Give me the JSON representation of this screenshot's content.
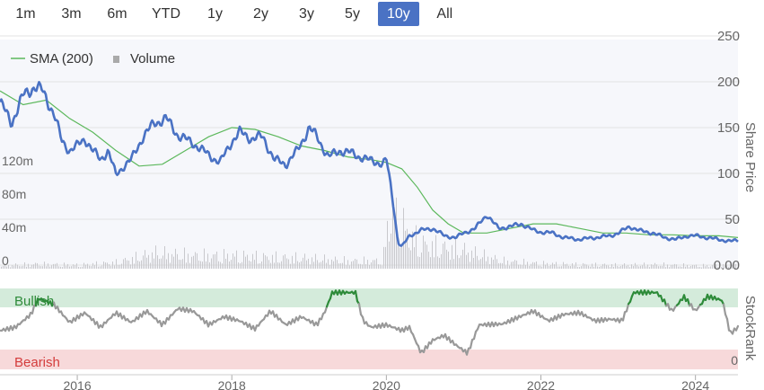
{
  "range_selector": {
    "buttons": [
      {
        "label": "1m",
        "active": false
      },
      {
        "label": "3m",
        "active": false
      },
      {
        "label": "6m",
        "active": false
      },
      {
        "label": "YTD",
        "active": false
      },
      {
        "label": "1y",
        "active": false
      },
      {
        "label": "2y",
        "active": false
      },
      {
        "label": "3y",
        "active": false
      },
      {
        "label": "5y",
        "active": false
      },
      {
        "label": "10y",
        "active": true
      },
      {
        "label": "All",
        "active": false
      }
    ]
  },
  "colors": {
    "price_line": "#4a72c4",
    "sma_line": "#5cb85c",
    "volume_bars": "#c8c8cc",
    "bullish_band": "#d4ebdb",
    "bearish_band": "#f7d9da",
    "stockrank_neutral": "#999999",
    "stockrank_bullish": "#2e8b3a",
    "stockrank_bearish": "#d43c3c",
    "active_button": "#4a72c4"
  },
  "chart_data": {
    "type": "line",
    "legend": {
      "position": "top-left",
      "items": [
        {
          "label": "SMA (200)",
          "symbol": "line"
        },
        {
          "label": "Volume",
          "symbol": "square"
        }
      ]
    },
    "x_axis": {
      "range": [
        2015.0,
        2024.55
      ],
      "ticks": [
        "2016",
        "2018",
        "2020",
        "2022",
        "2024"
      ],
      "tick_values": [
        2016,
        2018,
        2020,
        2022,
        2024
      ]
    },
    "price_axis": {
      "label": "Share Price",
      "range": [
        0,
        250
      ],
      "ticks": [
        "250",
        "200",
        "150",
        "100",
        "50",
        "0.00"
      ],
      "tick_values": [
        250,
        200,
        150,
        100,
        50,
        0
      ]
    },
    "volume_axis": {
      "range": [
        0,
        150000000
      ],
      "ticks": [
        "120m",
        "80m",
        "40m",
        "0"
      ],
      "tick_values": [
        120000000,
        80000000,
        40000000,
        0
      ]
    },
    "stockrank_axis": {
      "label": "StockRank",
      "range": [
        0,
        100
      ],
      "ticks": [
        "0"
      ],
      "tick_values": [
        0
      ],
      "bands": [
        {
          "label": "Bullish",
          "from": 80,
          "to": 100
        },
        {
          "label": "Bearish",
          "from": 0,
          "to": 20
        }
      ]
    },
    "series": [
      {
        "name": "Share Price",
        "x": [
          2015.0,
          2015.15,
          2015.3,
          2015.45,
          2015.55,
          2015.7,
          2015.8,
          2015.9,
          2016.0,
          2016.1,
          2016.2,
          2016.3,
          2016.4,
          2016.5,
          2016.6,
          2016.7,
          2016.85,
          2017.0,
          2017.15,
          2017.3,
          2017.45,
          2017.55,
          2017.7,
          2017.85,
          2018.0,
          2018.1,
          2018.25,
          2018.4,
          2018.55,
          2018.7,
          2018.85,
          2019.0,
          2019.1,
          2019.25,
          2019.4,
          2019.55,
          2019.75,
          2019.9,
          2019.95,
          2020.0,
          2020.05,
          2020.1,
          2020.15,
          2020.2,
          2020.3,
          2020.45,
          2020.6,
          2020.75,
          2020.9,
          2021.0,
          2021.15,
          2021.3,
          2021.45,
          2021.6,
          2021.75,
          2021.9,
          2022.0,
          2022.15,
          2022.3,
          2022.5,
          2022.7,
          2022.9,
          2023.0,
          2023.15,
          2023.3,
          2023.45,
          2023.6,
          2023.75,
          2023.9,
          2024.0,
          2024.15,
          2024.3,
          2024.45,
          2024.55
        ],
        "values": [
          178,
          155,
          185,
          195,
          190,
          165,
          135,
          125,
          130,
          138,
          125,
          115,
          125,
          98,
          108,
          115,
          140,
          155,
          160,
          142,
          135,
          130,
          120,
          112,
          135,
          145,
          138,
          140,
          115,
          110,
          125,
          150,
          140,
          118,
          125,
          122,
          115,
          112,
          110,
          115,
          90,
          60,
          25,
          20,
          32,
          38,
          40,
          32,
          30,
          35,
          40,
          55,
          40,
          42,
          45,
          38,
          36,
          35,
          30,
          28,
          30,
          32,
          35,
          42,
          37,
          35,
          30,
          28,
          32,
          32,
          30,
          28,
          26,
          27
        ]
      },
      {
        "name": "SMA (200)",
        "x": [
          2015.0,
          2015.3,
          2015.6,
          2015.9,
          2016.2,
          2016.5,
          2016.8,
          2017.1,
          2017.4,
          2017.7,
          2018.0,
          2018.3,
          2018.6,
          2018.9,
          2019.2,
          2019.5,
          2019.8,
          2020.0,
          2020.2,
          2020.4,
          2020.6,
          2020.8,
          2021.0,
          2021.3,
          2021.6,
          2021.9,
          2022.2,
          2022.5,
          2022.8,
          2023.1,
          2023.4,
          2023.7,
          2024.0,
          2024.3,
          2024.55
        ],
        "values": [
          190,
          175,
          180,
          160,
          145,
          125,
          108,
          110,
          125,
          140,
          150,
          148,
          140,
          130,
          125,
          118,
          115,
          112,
          105,
          85,
          60,
          45,
          35,
          35,
          40,
          45,
          45,
          40,
          35,
          35,
          33,
          33,
          32,
          32,
          30
        ]
      },
      {
        "name": "StockRank",
        "x": [
          2015.0,
          2015.2,
          2015.4,
          2015.5,
          2015.7,
          2015.9,
          2016.1,
          2016.3,
          2016.5,
          2016.7,
          2016.9,
          2017.1,
          2017.3,
          2017.5,
          2017.7,
          2017.9,
          2018.1,
          2018.3,
          2018.5,
          2018.7,
          2018.9,
          2019.1,
          2019.2,
          2019.3,
          2019.6,
          2019.7,
          2019.8,
          2020.0,
          2020.2,
          2020.3,
          2020.45,
          2020.6,
          2020.75,
          2020.9,
          2021.05,
          2021.2,
          2021.5,
          2021.7,
          2021.9,
          2022.1,
          2022.3,
          2022.5,
          2022.7,
          2022.9,
          2023.05,
          2023.2,
          2023.5,
          2023.7,
          2023.85,
          2024.0,
          2024.15,
          2024.25,
          2024.35,
          2024.45,
          2024.55
        ],
        "values": [
          48,
          52,
          68,
          88,
          80,
          58,
          70,
          52,
          70,
          58,
          72,
          55,
          75,
          72,
          55,
          65,
          60,
          50,
          72,
          55,
          65,
          55,
          70,
          95,
          95,
          60,
          52,
          55,
          48,
          52,
          20,
          36,
          42,
          30,
          20,
          55,
          56,
          64,
          72,
          60,
          68,
          70,
          60,
          62,
          60,
          95,
          95,
          72,
          90,
          72,
          90,
          88,
          85,
          44,
          52
        ]
      },
      {
        "name": "Volume",
        "x": [
          2015.0,
          2015.5,
          2016.0,
          2016.5,
          2017.0,
          2017.5,
          2018.0,
          2018.5,
          2019.0,
          2019.5,
          2019.95,
          2020.02,
          2020.1,
          2020.2,
          2020.3,
          2020.4,
          2020.5,
          2021.0,
          2021.5,
          2022.0,
          2022.5,
          2023.0,
          2023.5,
          2024.0,
          2024.55
        ],
        "values": [
          6000000,
          9000000,
          7000000,
          12000000,
          30000000,
          25000000,
          25000000,
          22000000,
          20000000,
          15000000,
          15000000,
          95000000,
          100000000,
          85000000,
          60000000,
          55000000,
          45000000,
          35000000,
          15000000,
          10000000,
          8000000,
          7000000,
          8000000,
          6000000,
          6000000
        ]
      }
    ]
  }
}
